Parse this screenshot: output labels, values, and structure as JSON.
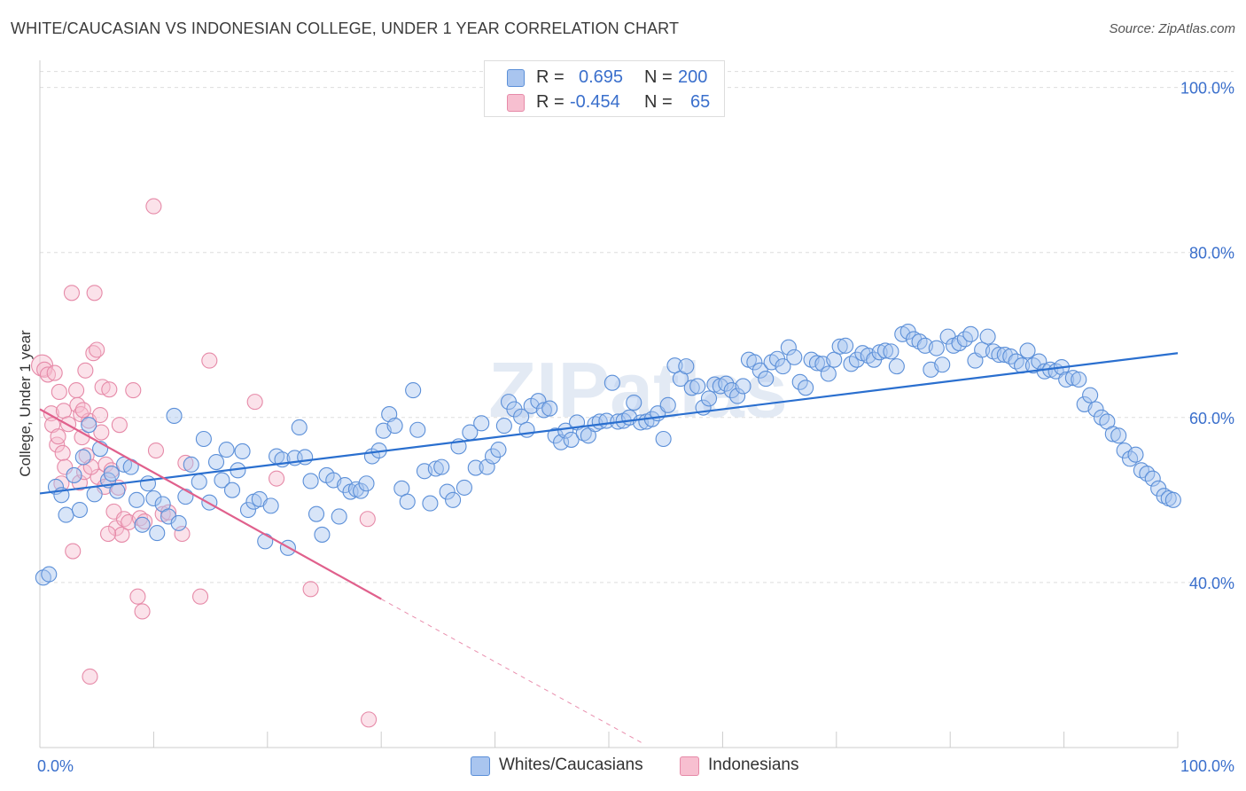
{
  "header": {
    "title": "WHITE/CAUCASIAN VS INDONESIAN COLLEGE, UNDER 1 YEAR CORRELATION CHART",
    "source": "Source: ZipAtlas.com"
  },
  "legend": {
    "rows": [
      {
        "r_label": "R =",
        "r_value": "0.695",
        "n_label": "N =",
        "n_value": "200"
      },
      {
        "r_label": "R =",
        "r_value": "-0.454",
        "n_label": "N =",
        "n_value": "65"
      }
    ],
    "bottom": [
      "Whites/Caucasians",
      "Indonesians"
    ]
  },
  "watermark": "ZIPatlas",
  "colors": {
    "blue_fill": "#a9c5ef",
    "blue_stroke": "#5b8fd8",
    "blue_line": "#2a6fcf",
    "pink_fill": "#f7bfd0",
    "pink_stroke": "#e68aa8",
    "pink_line": "#e0608c",
    "axis_text": "#3a6fcc",
    "grid": "#dddddd"
  },
  "chart_data": {
    "type": "scatter",
    "title": "WHITE/CAUCASIAN VS INDONESIAN COLLEGE, UNDER 1 YEAR CORRELATION CHART",
    "xlabel": "",
    "ylabel": "College, Under 1 year",
    "xlim": [
      0,
      100
    ],
    "ylim": [
      20,
      102
    ],
    "x_tick_labels": [
      "0.0%",
      "100.0%"
    ],
    "y_ticks": [
      40,
      60,
      80,
      100
    ],
    "y_tick_labels": [
      "40.0%",
      "60.0%",
      "80.0%",
      "100.0%"
    ],
    "grid": true,
    "legend_position": "top-center",
    "series": [
      {
        "name": "Whites/Caucasians",
        "r": 0.695,
        "n": 200,
        "trend": {
          "x": [
            0,
            100
          ],
          "y": [
            50.8,
            67.8
          ]
        },
        "points": [
          [
            0.3,
            40.6
          ],
          [
            0.8,
            41.0
          ],
          [
            1.4,
            51.6
          ],
          [
            1.9,
            50.6
          ],
          [
            2.3,
            48.2
          ],
          [
            3.0,
            53.0
          ],
          [
            3.5,
            48.8
          ],
          [
            3.8,
            55.2
          ],
          [
            4.3,
            59.1
          ],
          [
            4.8,
            50.7
          ],
          [
            5.3,
            56.2
          ],
          [
            6.0,
            52.4
          ],
          [
            6.3,
            53.2
          ],
          [
            6.8,
            51.1
          ],
          [
            7.4,
            54.3
          ],
          [
            8.0,
            54.0
          ],
          [
            8.5,
            50.0
          ],
          [
            9.0,
            47.0
          ],
          [
            9.5,
            52.0
          ],
          [
            10.0,
            50.2
          ],
          [
            10.3,
            46.0
          ],
          [
            10.8,
            49.5
          ],
          [
            11.3,
            48.0
          ],
          [
            11.8,
            60.2
          ],
          [
            12.2,
            47.2
          ],
          [
            12.8,
            50.4
          ],
          [
            13.3,
            54.3
          ],
          [
            14.0,
            52.2
          ],
          [
            14.4,
            57.4
          ],
          [
            14.9,
            49.7
          ],
          [
            15.5,
            54.6
          ],
          [
            16.0,
            52.4
          ],
          [
            16.4,
            56.1
          ],
          [
            16.9,
            51.2
          ],
          [
            17.4,
            53.6
          ],
          [
            17.8,
            55.9
          ],
          [
            18.3,
            48.8
          ],
          [
            18.8,
            49.8
          ],
          [
            19.3,
            50.1
          ],
          [
            19.8,
            45.0
          ],
          [
            20.3,
            49.3
          ],
          [
            20.8,
            55.3
          ],
          [
            21.3,
            54.9
          ],
          [
            21.8,
            44.2
          ],
          [
            22.4,
            55.1
          ],
          [
            22.8,
            58.8
          ],
          [
            23.3,
            55.2
          ],
          [
            23.8,
            52.3
          ],
          [
            24.3,
            48.3
          ],
          [
            24.8,
            45.8
          ],
          [
            25.2,
            53.0
          ],
          [
            25.8,
            52.4
          ],
          [
            26.3,
            48.0
          ],
          [
            26.8,
            51.8
          ],
          [
            27.3,
            51.0
          ],
          [
            27.8,
            51.3
          ],
          [
            28.2,
            51.1
          ],
          [
            28.7,
            52.0
          ],
          [
            29.2,
            55.3
          ],
          [
            29.8,
            56.0
          ],
          [
            30.2,
            58.4
          ],
          [
            30.7,
            60.4
          ],
          [
            31.2,
            59.0
          ],
          [
            31.8,
            51.4
          ],
          [
            32.3,
            49.8
          ],
          [
            32.8,
            63.3
          ],
          [
            33.2,
            58.5
          ],
          [
            33.8,
            53.5
          ],
          [
            34.3,
            49.6
          ],
          [
            34.8,
            53.8
          ],
          [
            35.3,
            54.0
          ],
          [
            35.8,
            51.0
          ],
          [
            36.3,
            50.0
          ],
          [
            36.8,
            56.5
          ],
          [
            37.3,
            51.5
          ],
          [
            37.8,
            58.2
          ],
          [
            38.3,
            53.9
          ],
          [
            38.8,
            59.3
          ],
          [
            39.3,
            54.0
          ],
          [
            39.8,
            55.3
          ],
          [
            40.3,
            56.1
          ],
          [
            40.8,
            59.0
          ],
          [
            41.2,
            61.9
          ],
          [
            41.7,
            61.0
          ],
          [
            42.3,
            60.1
          ],
          [
            42.8,
            58.5
          ],
          [
            43.2,
            61.4
          ],
          [
            43.8,
            62.0
          ],
          [
            44.3,
            60.9
          ],
          [
            44.8,
            61.1
          ],
          [
            45.3,
            57.8
          ],
          [
            45.8,
            57.0
          ],
          [
            46.2,
            58.4
          ],
          [
            46.7,
            57.3
          ],
          [
            47.2,
            59.4
          ],
          [
            47.8,
            58.1
          ],
          [
            48.2,
            57.8
          ],
          [
            48.8,
            59.2
          ],
          [
            49.2,
            59.5
          ],
          [
            49.8,
            59.6
          ],
          [
            50.3,
            64.2
          ],
          [
            50.8,
            59.5
          ],
          [
            51.3,
            59.6
          ],
          [
            51.8,
            60.0
          ],
          [
            52.2,
            61.8
          ],
          [
            52.8,
            59.4
          ],
          [
            53.3,
            59.5
          ],
          [
            53.8,
            59.8
          ],
          [
            54.3,
            60.5
          ],
          [
            54.8,
            57.4
          ],
          [
            55.2,
            61.5
          ],
          [
            55.8,
            66.3
          ],
          [
            56.3,
            64.7
          ],
          [
            56.8,
            66.2
          ],
          [
            57.3,
            63.6
          ],
          [
            57.8,
            63.8
          ],
          [
            58.3,
            61.2
          ],
          [
            58.8,
            62.3
          ],
          [
            59.3,
            64.0
          ],
          [
            59.8,
            63.8
          ],
          [
            60.3,
            64.1
          ],
          [
            60.8,
            63.3
          ],
          [
            61.3,
            62.6
          ],
          [
            61.8,
            63.8
          ],
          [
            62.3,
            67.0
          ],
          [
            62.8,
            66.7
          ],
          [
            63.3,
            65.7
          ],
          [
            63.8,
            64.7
          ],
          [
            64.3,
            66.7
          ],
          [
            64.8,
            67.1
          ],
          [
            65.3,
            66.2
          ],
          [
            65.8,
            68.5
          ],
          [
            66.3,
            67.3
          ],
          [
            66.8,
            64.3
          ],
          [
            67.3,
            63.6
          ],
          [
            67.8,
            67.0
          ],
          [
            68.3,
            66.6
          ],
          [
            68.8,
            66.5
          ],
          [
            69.3,
            65.3
          ],
          [
            69.8,
            67.0
          ],
          [
            70.3,
            68.6
          ],
          [
            70.8,
            68.7
          ],
          [
            71.3,
            66.5
          ],
          [
            71.8,
            67.0
          ],
          [
            72.3,
            67.8
          ],
          [
            72.8,
            67.5
          ],
          [
            73.3,
            67.0
          ],
          [
            73.8,
            67.9
          ],
          [
            74.3,
            68.1
          ],
          [
            74.8,
            68.0
          ],
          [
            75.3,
            66.2
          ],
          [
            75.8,
            70.1
          ],
          [
            76.3,
            70.4
          ],
          [
            76.8,
            69.5
          ],
          [
            77.3,
            69.2
          ],
          [
            77.8,
            68.7
          ],
          [
            78.3,
            65.8
          ],
          [
            78.8,
            68.4
          ],
          [
            79.3,
            66.4
          ],
          [
            79.8,
            69.8
          ],
          [
            80.3,
            68.7
          ],
          [
            80.8,
            69.0
          ],
          [
            81.3,
            69.5
          ],
          [
            81.8,
            70.1
          ],
          [
            82.2,
            66.9
          ],
          [
            82.8,
            68.2
          ],
          [
            83.3,
            69.8
          ],
          [
            83.8,
            68.0
          ],
          [
            84.3,
            67.6
          ],
          [
            84.8,
            67.6
          ],
          [
            85.3,
            67.4
          ],
          [
            85.8,
            66.8
          ],
          [
            86.3,
            66.3
          ],
          [
            86.8,
            68.1
          ],
          [
            87.3,
            66.3
          ],
          [
            87.8,
            66.8
          ],
          [
            88.3,
            65.6
          ],
          [
            88.8,
            65.8
          ],
          [
            89.3,
            65.6
          ],
          [
            89.8,
            66.1
          ],
          [
            90.2,
            64.6
          ],
          [
            90.8,
            64.8
          ],
          [
            91.3,
            64.6
          ],
          [
            91.8,
            61.6
          ],
          [
            92.3,
            62.7
          ],
          [
            92.8,
            61.0
          ],
          [
            93.3,
            60.0
          ],
          [
            93.8,
            59.5
          ],
          [
            94.3,
            58.0
          ],
          [
            94.8,
            57.8
          ],
          [
            95.3,
            56.0
          ],
          [
            95.8,
            55.0
          ],
          [
            96.3,
            55.5
          ],
          [
            96.8,
            53.6
          ],
          [
            97.3,
            53.2
          ],
          [
            97.8,
            52.6
          ],
          [
            98.3,
            51.4
          ],
          [
            98.8,
            50.5
          ],
          [
            99.2,
            50.2
          ],
          [
            99.6,
            50.0
          ]
        ]
      },
      {
        "name": "Indonesians",
        "r": -0.454,
        "n": 65,
        "trend": {
          "x": [
            0,
            30
          ],
          "y": [
            61.0,
            38.0
          ],
          "dashed_to": {
            "x": 53,
            "y": 20.5
          }
        },
        "points": [
          [
            0.2,
            66.3
          ],
          [
            0.4,
            65.8
          ],
          [
            0.7,
            65.2
          ],
          [
            1.0,
            60.5
          ],
          [
            1.1,
            59.1
          ],
          [
            1.3,
            65.4
          ],
          [
            1.5,
            56.7
          ],
          [
            1.6,
            57.7
          ],
          [
            1.7,
            63.1
          ],
          [
            1.9,
            52.0
          ],
          [
            2.0,
            55.7
          ],
          [
            2.1,
            60.8
          ],
          [
            2.2,
            54.0
          ],
          [
            2.5,
            59.2
          ],
          [
            2.8,
            75.1
          ],
          [
            2.9,
            43.8
          ],
          [
            3.2,
            63.3
          ],
          [
            3.3,
            61.5
          ],
          [
            3.5,
            52.1
          ],
          [
            3.6,
            60.4
          ],
          [
            3.7,
            57.6
          ],
          [
            3.9,
            53.4
          ],
          [
            4.0,
            65.7
          ],
          [
            4.1,
            55.4
          ],
          [
            4.3,
            59.6
          ],
          [
            4.4,
            28.6
          ],
          [
            4.7,
            67.8
          ],
          [
            4.8,
            75.1
          ],
          [
            5.0,
            68.2
          ],
          [
            5.1,
            52.8
          ],
          [
            5.3,
            60.3
          ],
          [
            5.4,
            58.2
          ],
          [
            5.5,
            63.7
          ],
          [
            5.7,
            51.6
          ],
          [
            5.8,
            54.3
          ],
          [
            6.1,
            63.4
          ],
          [
            6.3,
            53.6
          ],
          [
            6.5,
            48.6
          ],
          [
            6.7,
            46.6
          ],
          [
            6.9,
            51.5
          ],
          [
            7.0,
            59.1
          ],
          [
            7.2,
            45.8
          ],
          [
            7.4,
            47.7
          ],
          [
            7.8,
            47.3
          ],
          [
            8.2,
            63.3
          ],
          [
            8.6,
            38.3
          ],
          [
            8.8,
            47.8
          ],
          [
            9.0,
            36.5
          ],
          [
            9.2,
            47.4
          ],
          [
            10.0,
            85.6
          ],
          [
            10.2,
            56.0
          ],
          [
            10.8,
            48.3
          ],
          [
            11.3,
            48.5
          ],
          [
            12.5,
            45.9
          ],
          [
            12.8,
            54.5
          ],
          [
            14.1,
            38.3
          ],
          [
            14.9,
            66.9
          ],
          [
            18.9,
            61.9
          ],
          [
            20.8,
            52.6
          ],
          [
            23.8,
            39.2
          ],
          [
            28.8,
            47.7
          ],
          [
            28.9,
            23.4
          ],
          [
            3.8,
            60.9
          ],
          [
            4.5,
            54.0
          ],
          [
            6.0,
            45.9
          ]
        ]
      }
    ]
  }
}
